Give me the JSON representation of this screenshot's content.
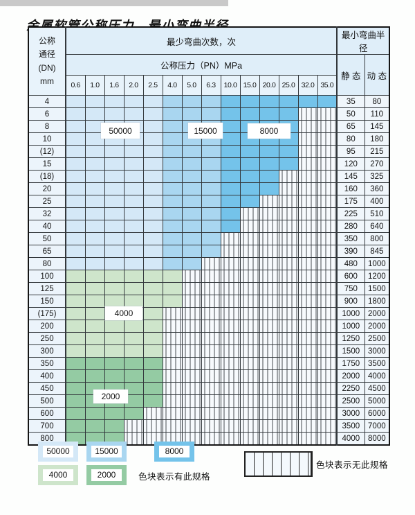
{
  "page": {
    "title": "金属软管公称压力、最小弯曲半径"
  },
  "table": {
    "header": {
      "dn_lines": "公称\n通径\n(DN)\nmm",
      "min_bend_cycles": "最少弯曲次数，次",
      "nominal_pressure": "公称压力（PN）MPa",
      "min_bend_radius": "最小弯曲半径",
      "static_label": "静 态",
      "dynamic_label": "动 态",
      "pressure_columns": [
        "0.6",
        "1.0",
        "1.6",
        "2.0",
        "2.5",
        "4.0",
        "5.0",
        "6.3",
        "10.0",
        "15.0",
        "20.0",
        "25.0",
        "32.0",
        "35.0"
      ]
    },
    "blue_bands": [
      {
        "cols_until": 5,
        "cycles": "50000"
      },
      {
        "cols_until": 8,
        "cycles": "15000"
      },
      {
        "cols_until": 14,
        "cycles": "8000"
      }
    ],
    "rows": [
      {
        "dn": "4",
        "colored": 14,
        "zone": "blue",
        "static": "35",
        "dynamic": "80"
      },
      {
        "dn": "6",
        "colored": 12,
        "zone": "blue",
        "static": "50",
        "dynamic": "110"
      },
      {
        "dn": "8",
        "colored": 12,
        "zone": "blue",
        "static": "65",
        "dynamic": "145"
      },
      {
        "dn": "10",
        "colored": 12,
        "zone": "blue",
        "static": "80",
        "dynamic": "180"
      },
      {
        "dn": "(12)",
        "colored": 12,
        "zone": "blue",
        "static": "95",
        "dynamic": "215"
      },
      {
        "dn": "15",
        "colored": 12,
        "zone": "blue",
        "static": "120",
        "dynamic": "270"
      },
      {
        "dn": "(18)",
        "colored": 11,
        "zone": "blue",
        "static": "145",
        "dynamic": "325"
      },
      {
        "dn": "20",
        "colored": 11,
        "zone": "blue",
        "static": "160",
        "dynamic": "360"
      },
      {
        "dn": "25",
        "colored": 10,
        "zone": "blue",
        "static": "175",
        "dynamic": "400"
      },
      {
        "dn": "32",
        "colored": 9,
        "zone": "blue",
        "static": "225",
        "dynamic": "510"
      },
      {
        "dn": "40",
        "colored": 9,
        "zone": "blue",
        "static": "280",
        "dynamic": "640"
      },
      {
        "dn": "50",
        "colored": 8,
        "zone": "blue",
        "static": "350",
        "dynamic": "800"
      },
      {
        "dn": "65",
        "colored": 8,
        "zone": "blue",
        "static": "390",
        "dynamic": "845"
      },
      {
        "dn": "80",
        "colored": 7,
        "zone": "blue",
        "static": "480",
        "dynamic": "1000"
      },
      {
        "dn": "100",
        "colored": 6,
        "zone": "4000",
        "static": "600",
        "dynamic": "1200"
      },
      {
        "dn": "125",
        "colored": 6,
        "zone": "4000",
        "static": "750",
        "dynamic": "1500"
      },
      {
        "dn": "150",
        "colored": 6,
        "zone": "4000",
        "static": "900",
        "dynamic": "1800"
      },
      {
        "dn": "(175)",
        "colored": 5,
        "zone": "4000",
        "static": "1000",
        "dynamic": "2000"
      },
      {
        "dn": "200",
        "colored": 5,
        "zone": "4000",
        "static": "1000",
        "dynamic": "2000"
      },
      {
        "dn": "250",
        "colored": 5,
        "zone": "4000",
        "static": "1250",
        "dynamic": "2500"
      },
      {
        "dn": "300",
        "colored": 5,
        "zone": "4000",
        "static": "1500",
        "dynamic": "3000"
      },
      {
        "dn": "350",
        "colored": 5,
        "zone": "2000",
        "static": "1750",
        "dynamic": "3500"
      },
      {
        "dn": "400",
        "colored": 5,
        "zone": "2000",
        "static": "2000",
        "dynamic": "4000"
      },
      {
        "dn": "450",
        "colored": 5,
        "zone": "2000",
        "static": "2250",
        "dynamic": "4500"
      },
      {
        "dn": "500",
        "colored": 5,
        "zone": "2000",
        "static": "2500",
        "dynamic": "5000"
      },
      {
        "dn": "600",
        "colored": 4,
        "zone": "2000",
        "static": "3000",
        "dynamic": "6000"
      },
      {
        "dn": "700",
        "colored": 3,
        "zone": "2000",
        "static": "3500",
        "dynamic": "7000"
      },
      {
        "dn": "800",
        "colored": 3,
        "zone": "2000",
        "static": "4000",
        "dynamic": "8000"
      }
    ],
    "overlay_labels": {
      "l50000": "50000",
      "l15000": "15000",
      "l8000": "8000",
      "l4000": "4000",
      "l2000": "2000"
    }
  },
  "legend": {
    "colors": {
      "50000": "#d4e8f7",
      "15000": "#a9d6f0",
      "8000": "#74c3ea",
      "4000": "#cee5cb",
      "2000": "#94cba3"
    },
    "items": [
      "50000",
      "15000",
      "8000",
      "4000",
      "2000"
    ],
    "has_spec_note": "色块表示有此规格",
    "no_spec_note": "色块表示无此规格"
  }
}
